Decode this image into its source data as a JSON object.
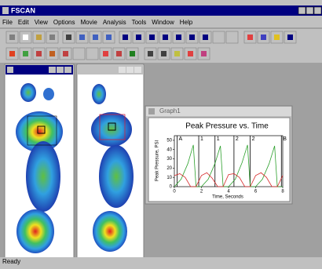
{
  "app": {
    "title": "FSCAN",
    "menu": [
      "File",
      "Edit",
      "View",
      "Options",
      "Movie",
      "Analysis",
      "Tools",
      "Window",
      "Help"
    ],
    "status": "Ready"
  },
  "graph": {
    "window_title": "Graph1",
    "title": "Peak Pressure vs. Time",
    "x_label": "Time, Seconds",
    "y_label": "Peak Pressure, PSI",
    "xlim": [
      0,
      8
    ],
    "ylim": [
      0,
      55
    ],
    "xticks": [
      0,
      2,
      4,
      6,
      8
    ],
    "yticks": [
      0,
      10,
      20,
      30,
      40,
      50
    ],
    "markers": [
      {
        "label": "A",
        "x": 0.2
      },
      {
        "label": "1",
        "x": 1.8
      },
      {
        "label": "1",
        "x": 3.0
      },
      {
        "label": "2",
        "x": 4.4
      },
      {
        "label": "2",
        "x": 5.6
      },
      {
        "label": "B",
        "x": 7.9
      }
    ],
    "series": [
      {
        "color": "#2ca02c",
        "x": [
          0,
          0.5,
          1.0,
          1.4,
          1.6,
          2.0,
          2.5,
          3.0,
          3.4,
          3.6,
          4.0,
          4.5,
          5.0,
          5.4,
          5.6,
          6.0,
          6.5,
          7.0,
          7.4,
          7.6,
          8.0
        ],
        "values": [
          0,
          8,
          25,
          45,
          0,
          0,
          8,
          25,
          44,
          0,
          0,
          8,
          26,
          45,
          0,
          0,
          8,
          25,
          44,
          0,
          0
        ]
      },
      {
        "color": "#d62728",
        "x": [
          0,
          0.4,
          0.8,
          1.2,
          1.6,
          2.0,
          2.4,
          2.8,
          3.2,
          3.6,
          4.0,
          4.4,
          4.8,
          5.2,
          5.6,
          6.0,
          6.4,
          6.8,
          7.2,
          7.6,
          8.0
        ],
        "values": [
          12,
          14,
          10,
          0,
          0,
          12,
          15,
          9,
          0,
          0,
          13,
          14,
          10,
          0,
          0,
          12,
          15,
          10,
          0,
          0,
          12
        ]
      }
    ]
  }
}
